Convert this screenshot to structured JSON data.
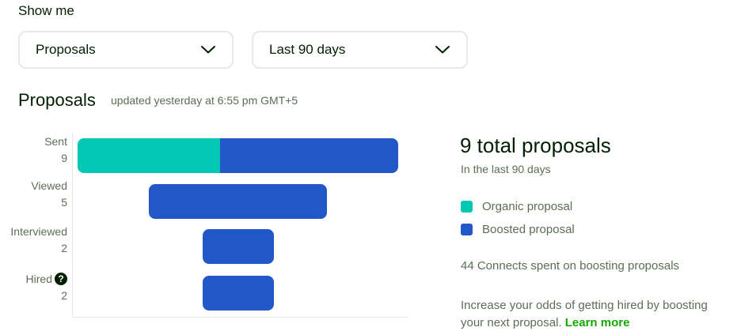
{
  "filters": {
    "heading": "Show me",
    "type_select": {
      "value": "Proposals"
    },
    "range_select": {
      "value": "Last 90 days"
    }
  },
  "section": {
    "title": "Proposals",
    "updated": "updated yesterday at 6:55 pm GMT+5"
  },
  "colors": {
    "organic": "#00c8b4",
    "boosted": "#2157c6"
  },
  "funnel": [
    {
      "label": "Sent",
      "count": "9",
      "total": 9,
      "organic": 4,
      "boosted": 5
    },
    {
      "label": "Viewed",
      "count": "5",
      "total": 5,
      "organic": 0,
      "boosted": 5
    },
    {
      "label": "Interviewed",
      "count": "2",
      "total": 2,
      "organic": 0,
      "boosted": 2
    },
    {
      "label": "Hired",
      "count": "2",
      "total": 2,
      "organic": 0,
      "boosted": 2,
      "help_icon": "question-circle-icon"
    }
  ],
  "summary": {
    "title": "9 total proposals",
    "subtitle": "In the last 90 days",
    "legend": {
      "organic": "Organic proposal",
      "boosted": "Boosted proposal"
    },
    "connects": "44 Connects spent on boosting proposals",
    "promo_text": "Increase your odds of getting hired by boosting your next proposal.",
    "learn_more": "Learn more"
  }
}
